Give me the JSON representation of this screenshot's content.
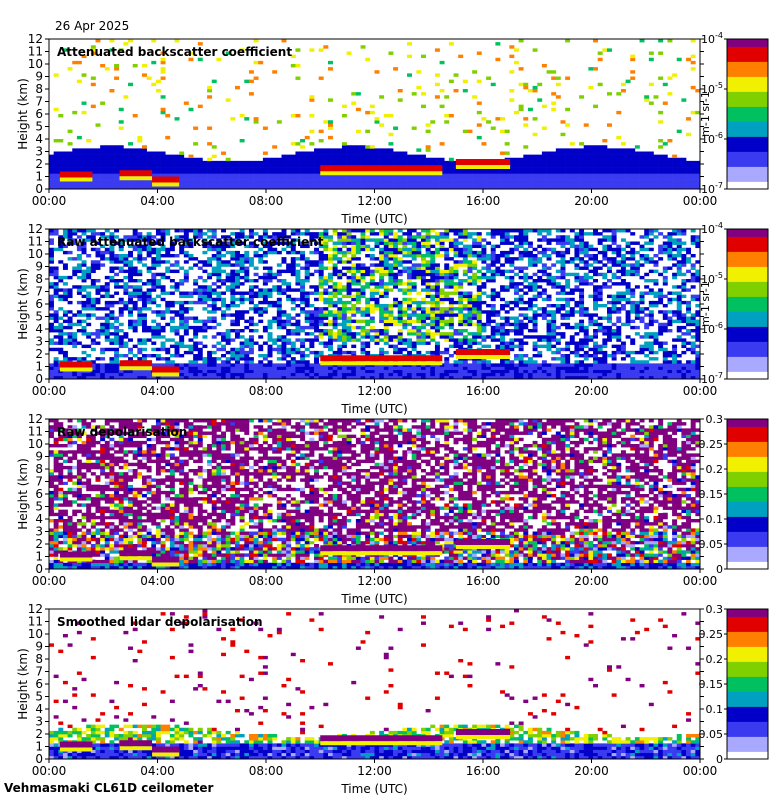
{
  "header": {
    "date": "26 Apr 2025"
  },
  "footer": {
    "station": "Vehmasmaki CL61D ceilometer"
  },
  "chart_data": [
    {
      "type": "heatmap",
      "title": "Attenuated backscatter coefficient",
      "xlabel": "Time (UTC)",
      "ylabel": "Height (km)",
      "xticks": [
        "00:00",
        "04:00",
        "08:00",
        "12:00",
        "16:00",
        "20:00",
        "00:00"
      ],
      "yticks": [
        "0",
        "1",
        "2",
        "3",
        "4",
        "5",
        "6",
        "7",
        "8",
        "9",
        "10",
        "11",
        "12"
      ],
      "ylim": [
        0,
        12
      ],
      "colorbar": {
        "scale": "log",
        "ticks": [
          "10-7",
          "10-6",
          "10-5",
          "10-4"
        ],
        "units": "m-1 sr-1"
      },
      "features": [
        {
          "t0": 0.4,
          "t1": 1.6,
          "h": 1.0
        },
        {
          "t0": 2.6,
          "t1": 3.8,
          "h": 1.1
        },
        {
          "t0": 3.8,
          "t1": 4.8,
          "h": 0.6
        },
        {
          "t0": 10.0,
          "t1": 14.5,
          "h": 1.5
        },
        {
          "t0": 15.0,
          "t1": 17.0,
          "h": 2.0
        }
      ]
    },
    {
      "type": "heatmap",
      "title": "Raw attenuated backscatter coefficient",
      "xlabel": "Time (UTC)",
      "ylabel": "Height (km)",
      "xticks": [
        "00:00",
        "04:00",
        "08:00",
        "12:00",
        "16:00",
        "20:00",
        "00:00"
      ],
      "yticks": [
        "0",
        "1",
        "2",
        "3",
        "4",
        "5",
        "6",
        "7",
        "8",
        "9",
        "10",
        "11",
        "12"
      ],
      "ylim": [
        0,
        12
      ],
      "colorbar": {
        "scale": "log",
        "ticks": [
          "10-7",
          "10-6",
          "10-5",
          "10-4"
        ],
        "units": "m-1 sr-1"
      }
    },
    {
      "type": "heatmap",
      "title": "Raw depolarisation",
      "xlabel": "Time (UTC)",
      "ylabel": "Height (km)",
      "xticks": [
        "00:00",
        "04:00",
        "08:00",
        "12:00",
        "16:00",
        "20:00",
        "00:00"
      ],
      "yticks": [
        "0",
        "1",
        "2",
        "3",
        "4",
        "5",
        "6",
        "7",
        "8",
        "9",
        "10",
        "11",
        "12"
      ],
      "ylim": [
        0,
        12
      ],
      "colorbar": {
        "scale": "linear",
        "ticks": [
          "0",
          "0.05",
          "0.1",
          "0.15",
          "0.2",
          "0.25",
          "0.3"
        ],
        "range": [
          0,
          0.3
        ]
      }
    },
    {
      "type": "heatmap",
      "title": "Smoothed lidar depolarisation",
      "xlabel": "Time (UTC)",
      "ylabel": "Height (km)",
      "xticks": [
        "00:00",
        "04:00",
        "08:00",
        "12:00",
        "16:00",
        "20:00",
        "00:00"
      ],
      "yticks": [
        "0",
        "1",
        "2",
        "3",
        "4",
        "5",
        "6",
        "7",
        "8",
        "9",
        "10",
        "11",
        "12"
      ],
      "ylim": [
        0,
        12
      ],
      "colorbar": {
        "scale": "linear",
        "ticks": [
          "0",
          "0.05",
          "0.1",
          "0.15",
          "0.2",
          "0.25",
          "0.3"
        ],
        "range": [
          0,
          0.3
        ]
      }
    }
  ],
  "colors": {
    "colormap": [
      "#ffffff",
      "#a9a9ff",
      "#3a3af0",
      "#0000c8",
      "#00a0c0",
      "#00c060",
      "#80d000",
      "#f0f000",
      "#ff8000",
      "#e00000",
      "#800080"
    ]
  }
}
